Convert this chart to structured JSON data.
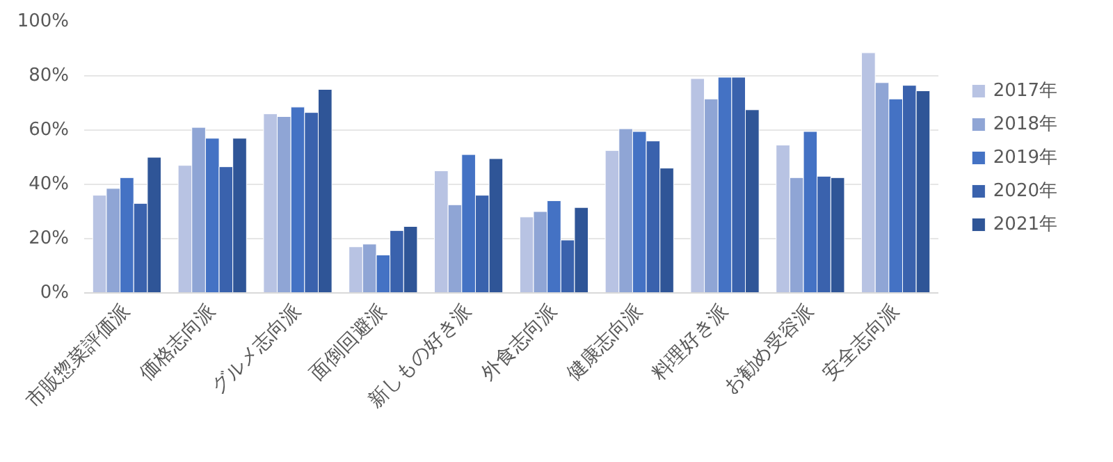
{
  "chart_data": {
    "type": "bar",
    "categories": [
      "市販惣菜評価派",
      "価格志向派",
      "グルメ志向派",
      "面倒回避派",
      "新しもの好き派",
      "外食志向派",
      "健康志向派",
      "料理好き派",
      "お勧め受容派",
      "安全志向派"
    ],
    "series": [
      {
        "name": "2017年",
        "color": "#b8c3e3",
        "values": [
          36,
          47,
          66,
          17,
          45,
          28,
          52.5,
          79,
          54.5,
          88.5
        ]
      },
      {
        "name": "2018年",
        "color": "#8fa5d5",
        "values": [
          38.5,
          61,
          65,
          18,
          32.5,
          30,
          60.5,
          71.5,
          42.5,
          77.5
        ]
      },
      {
        "name": "2019年",
        "color": "#4472c4",
        "values": [
          42.5,
          57,
          68.5,
          14,
          51,
          34,
          59.5,
          79.5,
          59.5,
          71.5
        ]
      },
      {
        "name": "2020年",
        "color": "#3a62ad",
        "values": [
          33,
          46.5,
          66.5,
          23,
          36,
          19.5,
          56,
          79.5,
          43,
          76.5
        ]
      },
      {
        "name": "2021年",
        "color": "#2f5597",
        "values": [
          50,
          57,
          75,
          24.5,
          49.5,
          31.5,
          46,
          67.5,
          42.5,
          74.5
        ]
      }
    ],
    "ylim": [
      0,
      100
    ],
    "yticks": [
      {
        "value": 0,
        "label": "0%"
      },
      {
        "value": 20,
        "label": "20%"
      },
      {
        "value": 40,
        "label": "40%"
      },
      {
        "value": 60,
        "label": "60%"
      },
      {
        "value": 80,
        "label": "80%"
      },
      {
        "value": 100,
        "label": "100%"
      }
    ],
    "grid": "y",
    "legend": "right"
  }
}
